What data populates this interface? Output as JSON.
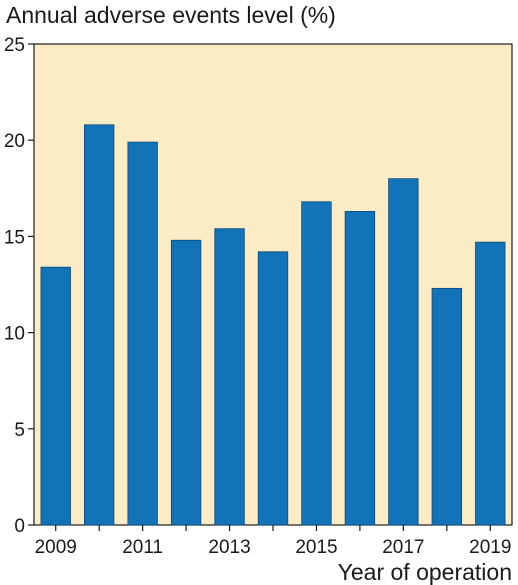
{
  "chart_data": {
    "type": "bar",
    "ylabel": "Annual adverse events level (%)",
    "xlabel": "Year of operation",
    "categories": [
      "2009",
      "2010",
      "2011",
      "2012",
      "2013",
      "2014",
      "2015",
      "2016",
      "2017",
      "2018",
      "2019"
    ],
    "x_tick_labels": [
      "2009",
      "2011",
      "2013",
      "2015",
      "2017",
      "2019"
    ],
    "y_ticks": [
      0,
      5,
      10,
      15,
      20,
      25
    ],
    "values": [
      13.4,
      20.8,
      19.9,
      14.8,
      15.4,
      14.2,
      16.8,
      16.3,
      18.0,
      12.3,
      14.7
    ],
    "ylim": [
      0,
      25
    ],
    "grid": false,
    "colors": {
      "bar": "#1273b9",
      "bar_edge": "#0c4a7a",
      "plot_background": "#fcecc5",
      "axis": "#1a1a1a"
    }
  }
}
